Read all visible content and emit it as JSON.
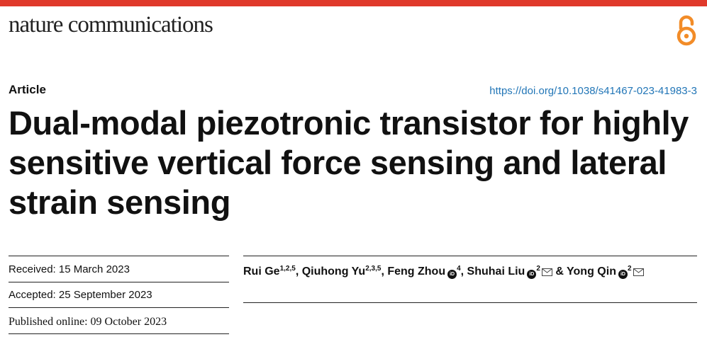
{
  "header": {
    "journal_name": "nature communications",
    "accent_color": "#e0392b",
    "open_access_icon": "open-access-lock-icon"
  },
  "article": {
    "type": "Article",
    "doi": "https://doi.org/10.1038/s41467-023-41983-3",
    "title": "Dual-modal piezotronic transistor for highly sensitive vertical force sensing and lateral strain sensing"
  },
  "dates": {
    "received": "Received: 15 March 2023",
    "accepted": "Accepted: 25 September 2023",
    "published": "Published online: 09 October 2023"
  },
  "authors": [
    {
      "name": "Rui Ge",
      "affil": "1,2,5",
      "orcid": false,
      "email": false
    },
    {
      "name": "Qiuhong Yu",
      "affil": "2,3,5",
      "orcid": false,
      "email": false
    },
    {
      "name": "Feng Zhou",
      "affil": "4",
      "orcid": true,
      "email": false
    },
    {
      "name": "Shuhai Liu",
      "affil": "2",
      "orcid": true,
      "email": true
    },
    {
      "name": "Yong Qin",
      "affil": "2",
      "orcid": true,
      "email": true
    }
  ],
  "author_separators": [
    ", ",
    ", ",
    ", ",
    " & "
  ],
  "orcid_glyph": "iD"
}
